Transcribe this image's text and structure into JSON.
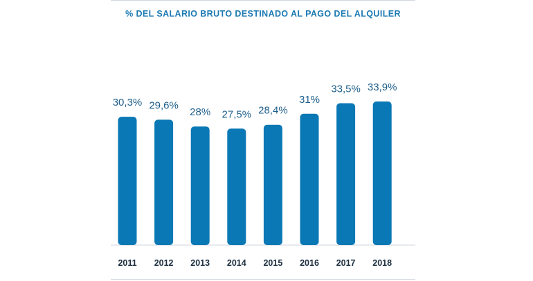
{
  "chart_data": {
    "type": "bar",
    "title": "% DEL SALARIO BRUTO DESTINADO AL PAGO DEL ALQUILER",
    "categories": [
      "2011",
      "2012",
      "2013",
      "2014",
      "2015",
      "2016",
      "2017",
      "2018"
    ],
    "values": [
      30.3,
      29.6,
      28,
      27.5,
      28.4,
      31,
      33.5,
      33.9
    ],
    "data_labels": [
      "30,3%",
      "29,6%",
      "28%",
      "27,5%",
      "28,4%",
      "31%",
      "33,5%",
      "33,9%"
    ],
    "xlabel": "",
    "ylabel": "",
    "ylim": [
      0,
      34
    ],
    "grid": false,
    "legend": "none",
    "bar_color": "#0a78b5",
    "label_color": "#1f5f8b",
    "title_color": "#1c7ab3",
    "axis_label_color": "#1d2f40"
  }
}
